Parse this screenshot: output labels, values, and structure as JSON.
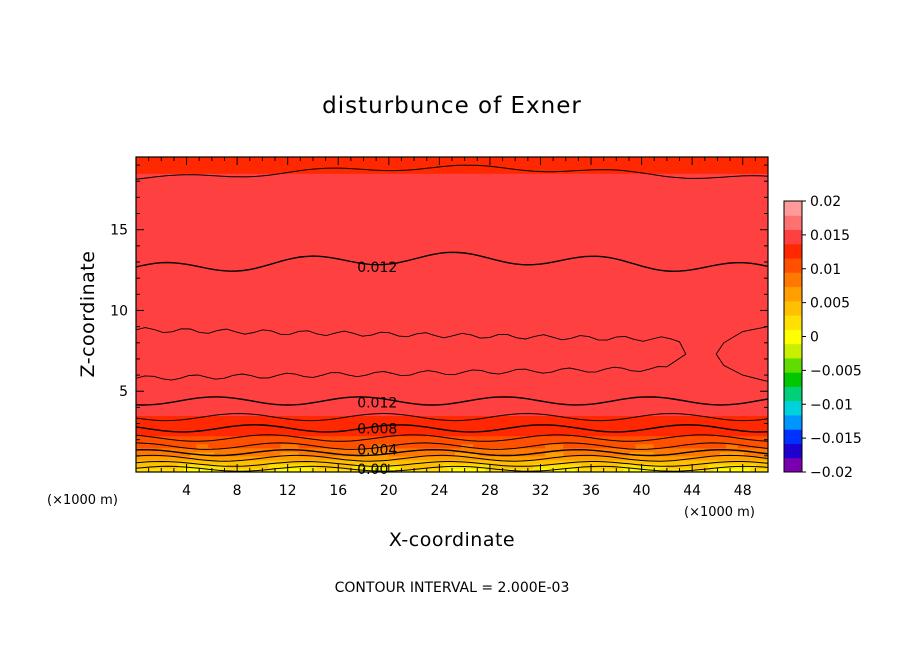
{
  "chart_data": {
    "type": "heatmap",
    "title": "disturbunce of Exner",
    "xlabel": "X-coordinate",
    "ylabel": "Z-coordinate",
    "x_unit": "(×1000 m)",
    "x_unit_right": "(×1000 m)",
    "xlim": [
      0,
      50
    ],
    "ylim": [
      0,
      19.5
    ],
    "x_ticks": [
      4,
      8,
      12,
      16,
      20,
      24,
      28,
      32,
      36,
      40,
      44,
      48
    ],
    "x_tick_labels": [
      "4",
      "8",
      "12",
      "16",
      "20",
      "24",
      "28",
      "32",
      "36",
      "40",
      "44",
      "48"
    ],
    "y_ticks": [
      5,
      10,
      15
    ],
    "y_tick_labels": [
      "5",
      "10",
      "15"
    ],
    "colorbar": {
      "min": -0.02,
      "max": 0.02,
      "ticks": [
        0.02,
        0.015,
        0.01,
        0.005,
        0,
        -0.005,
        -0.01,
        -0.015,
        -0.02
      ],
      "tick_labels": [
        "0.02",
        "0.015",
        "0.01",
        "0.005",
        "0",
        "−0.005",
        "−0.01",
        "−0.015",
        "−0.02"
      ],
      "colors": [
        "#7b00b0",
        "#1e00d0",
        "#0032ff",
        "#0096ff",
        "#00d2dc",
        "#00d07a",
        "#00c800",
        "#60dc00",
        "#c8f000",
        "#ffff00",
        "#ffe000",
        "#ffc000",
        "#ffa000",
        "#ff7800",
        "#ff5000",
        "#ff2800",
        "#ff4040",
        "#ff7070",
        "#ff9a9a"
      ]
    },
    "contour_interval": "CONTOUR INTERVAL = 2.000E-03",
    "contour_labels": [
      {
        "text": "0.012",
        "x": 17.5,
        "z": 12.7
      },
      {
        "text": "0.012",
        "x": 17.5,
        "z": 4.3
      },
      {
        "text": "0.008",
        "x": 17.5,
        "z": 2.7
      },
      {
        "text": "0.004",
        "x": 17.5,
        "z": 1.4
      },
      {
        "text": "0.00",
        "x": 17.5,
        "z": 0.2
      }
    ]
  }
}
